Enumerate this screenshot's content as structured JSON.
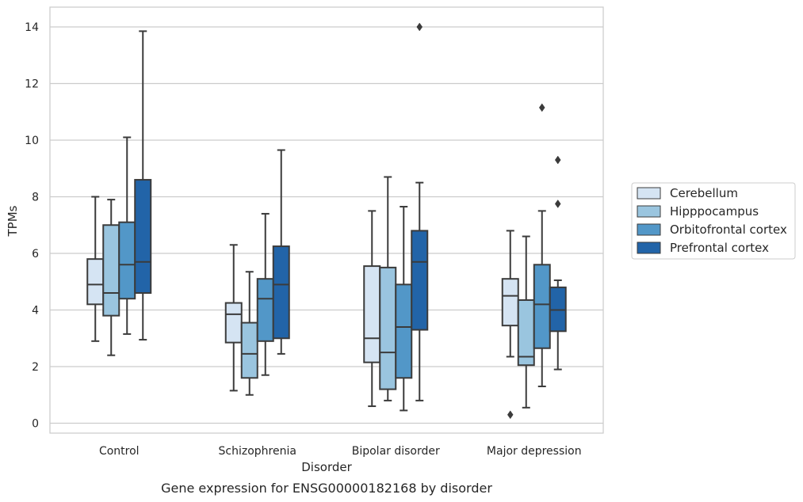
{
  "chart_data": {
    "type": "box",
    "title": "",
    "caption": "Gene expression for ENSG00000182168 by disorder",
    "xlabel": "Disorder",
    "ylabel": "TPMs",
    "ylim": [
      -0.35,
      14.7
    ],
    "yticks": [
      0,
      2,
      4,
      6,
      8,
      10,
      12,
      14
    ],
    "grid": "horizontal",
    "legend_position": "right",
    "categories": [
      "Control",
      "Schizophrenia",
      "Bipolar disorder",
      "Major depression"
    ],
    "series": [
      {
        "name": "Cerebellum",
        "color": "#d5e4f3",
        "boxes": [
          {
            "whisker_low": 2.9,
            "q1": 4.2,
            "median": 4.9,
            "q3": 5.8,
            "whisker_high": 8.0,
            "outliers": []
          },
          {
            "whisker_low": 1.15,
            "q1": 2.85,
            "median": 3.85,
            "q3": 4.25,
            "whisker_high": 6.3,
            "outliers": []
          },
          {
            "whisker_low": 0.6,
            "q1": 2.15,
            "median": 3.0,
            "q3": 5.55,
            "whisker_high": 7.5,
            "outliers": []
          },
          {
            "whisker_low": 2.35,
            "q1": 3.45,
            "median": 4.5,
            "q3": 5.1,
            "whisker_high": 6.8,
            "outliers": [
              0.3
            ]
          }
        ]
      },
      {
        "name": "Hipppocampus",
        "color": "#9ac5df",
        "boxes": [
          {
            "whisker_low": 2.4,
            "q1": 3.8,
            "median": 4.6,
            "q3": 7.0,
            "whisker_high": 7.9,
            "outliers": []
          },
          {
            "whisker_low": 1.0,
            "q1": 1.6,
            "median": 2.45,
            "q3": 3.55,
            "whisker_high": 5.35,
            "outliers": []
          },
          {
            "whisker_low": 0.8,
            "q1": 1.2,
            "median": 2.5,
            "q3": 5.5,
            "whisker_high": 8.7,
            "outliers": []
          },
          {
            "whisker_low": 0.55,
            "q1": 2.05,
            "median": 2.35,
            "q3": 4.35,
            "whisker_high": 6.6,
            "outliers": []
          }
        ]
      },
      {
        "name": "Orbitofrontal cortex",
        "color": "#5297c8",
        "boxes": [
          {
            "whisker_low": 3.15,
            "q1": 4.4,
            "median": 5.6,
            "q3": 7.1,
            "whisker_high": 10.1,
            "outliers": []
          },
          {
            "whisker_low": 1.7,
            "q1": 2.9,
            "median": 4.4,
            "q3": 5.1,
            "whisker_high": 7.4,
            "outliers": []
          },
          {
            "whisker_low": 0.45,
            "q1": 1.6,
            "median": 3.4,
            "q3": 4.9,
            "whisker_high": 7.65,
            "outliers": []
          },
          {
            "whisker_low": 1.3,
            "q1": 2.65,
            "median": 4.2,
            "q3": 5.6,
            "whisker_high": 7.5,
            "outliers": [
              11.15
            ]
          }
        ]
      },
      {
        "name": "Prefrontal cortex",
        "color": "#2264a8",
        "boxes": [
          {
            "whisker_low": 2.95,
            "q1": 4.6,
            "median": 5.7,
            "q3": 8.6,
            "whisker_high": 13.85,
            "outliers": []
          },
          {
            "whisker_low": 2.45,
            "q1": 3.0,
            "median": 4.9,
            "q3": 6.25,
            "whisker_high": 9.65,
            "outliers": []
          },
          {
            "whisker_low": 0.8,
            "q1": 3.3,
            "median": 5.7,
            "q3": 6.8,
            "whisker_high": 8.5,
            "outliers": [
              14.0
            ]
          },
          {
            "whisker_low": 1.9,
            "q1": 3.25,
            "median": 4.0,
            "q3": 4.8,
            "whisker_high": 5.05,
            "outliers": [
              7.75,
              9.3
            ]
          }
        ]
      }
    ]
  }
}
